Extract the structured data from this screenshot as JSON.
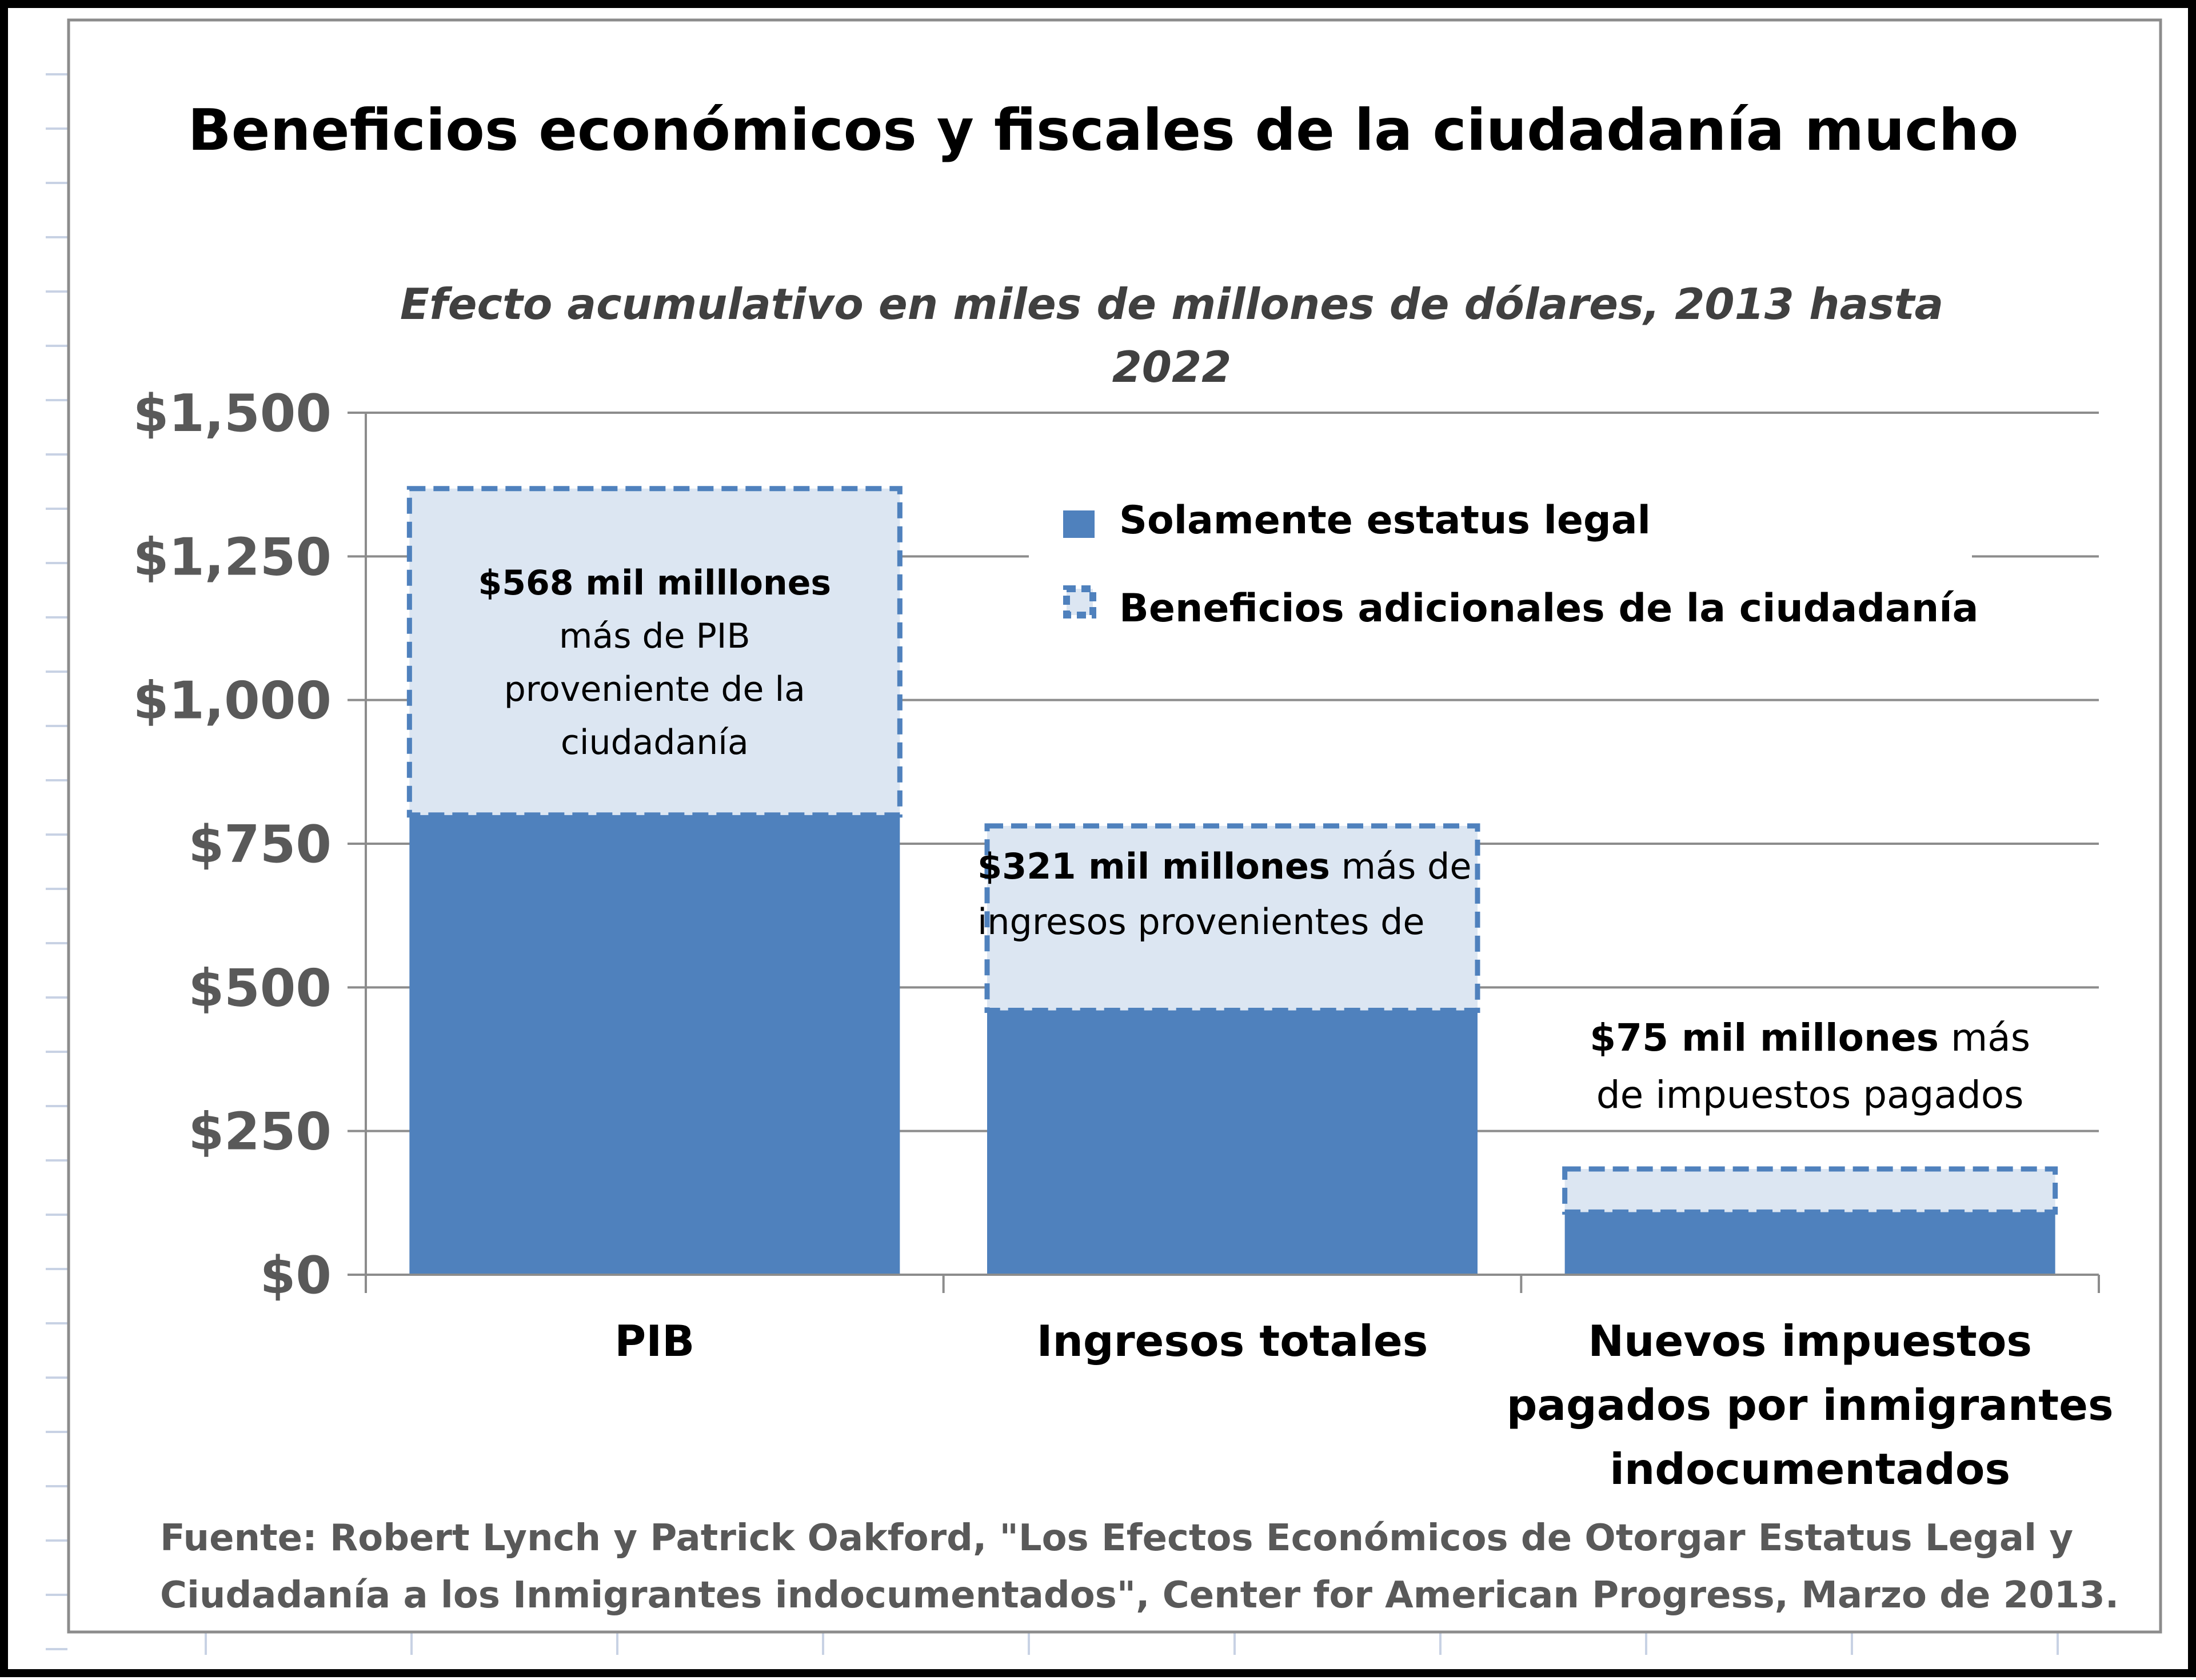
{
  "chart_data": {
    "type": "bar",
    "stacked": true,
    "title": "Beneficios económicos y fiscales de la ciudadanía mucho",
    "subtitle_lines": [
      "Efecto acumulativo en miles de millones de dólares, 2013 hasta",
      "2022"
    ],
    "categories": [
      "PIB",
      "Ingresos totales",
      "Nuevos impuestos pagados por inmigrantes indocumentados"
    ],
    "category_lines": [
      [
        "PIB"
      ],
      [
        "Ingresos totales"
      ],
      [
        "Nuevos impuestos",
        "pagados por inmigrantes",
        "indocumentados"
      ]
    ],
    "series": [
      {
        "name": "Solamente estatus legal",
        "values": [
          800,
          460,
          109
        ],
        "color": "#4F81BD",
        "style": "solid"
      },
      {
        "name": "Beneficios adicionales de la ciudadanía",
        "values": [
          568,
          321,
          75
        ],
        "color": "#DCE6F2",
        "border_color": "#4F81BD",
        "style": "dashed"
      }
    ],
    "ylim": [
      0,
      1500
    ],
    "yticks": [
      0,
      250,
      500,
      750,
      1000,
      1250,
      1500
    ],
    "ytick_labels": [
      "$0",
      "$250",
      "$500",
      "$750",
      "$1,000",
      "$1,250",
      "$1,500"
    ],
    "grid": true,
    "legend_position": "top-right",
    "annotations": [
      {
        "bar": 0,
        "lines": [
          [
            "$568 mil milllones",
            true
          ]
        ],
        "extra_lines": [
          "más de PIB",
          "proveniente de la",
          "ciudadanía"
        ]
      },
      {
        "bar": 1,
        "lines": [
          [
            "$321 mil millones",
            true
          ],
          [
            " más de",
            false
          ]
        ],
        "extra_lines": [
          "ingresos  provenientes de"
        ]
      },
      {
        "bar": 2,
        "lines": [
          [
            "$75 mil millones",
            true
          ],
          [
            " más",
            false
          ]
        ],
        "extra_lines": [
          "de impuestos pagados"
        ]
      }
    ],
    "source_lines": [
      "Fuente:  Robert Lynch y Patrick Oakford, \"Los Efectos Económicos de Otorgar Estatus Legal y",
      "Ciudadanía a los Inmigrantes indocumentados\", Center for American Progress, Marzo de  2013."
    ]
  }
}
